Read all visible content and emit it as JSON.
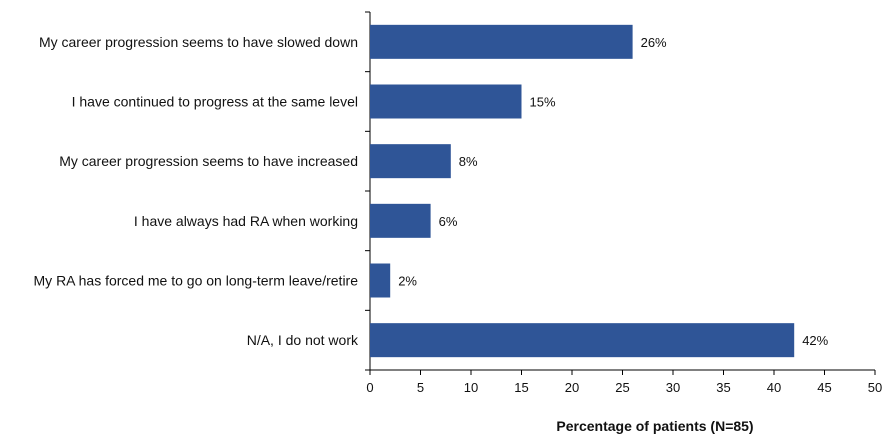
{
  "chart_data": {
    "type": "bar",
    "orientation": "horizontal",
    "categories": [
      "My career progression seems to have slowed down",
      "I have continued to progress at the same level",
      "My career progression seems to have increased",
      "I have always had RA when working",
      "My RA has forced me to go on long-term leave/retire",
      "N/A, I do not work"
    ],
    "values": [
      26,
      15,
      8,
      6,
      2,
      42
    ],
    "data_labels": [
      "26%",
      "15%",
      "8%",
      "6%",
      "2%",
      "42%"
    ],
    "xlabel": "Percentage of patients (N=85)",
    "ylabel": "",
    "xlim": [
      0,
      50
    ],
    "xticks": [
      0,
      5,
      10,
      15,
      20,
      25,
      30,
      35,
      40,
      45,
      50
    ],
    "grid": false,
    "bar_color": "#2F5597"
  }
}
